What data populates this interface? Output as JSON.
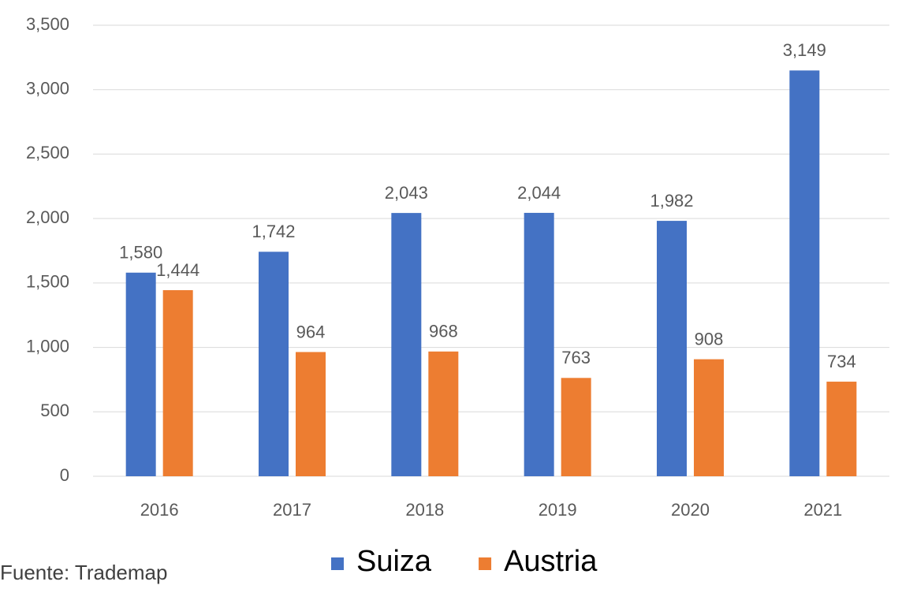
{
  "chart_data": {
    "type": "bar",
    "categories": [
      "2016",
      "2017",
      "2018",
      "2019",
      "2020",
      "2021"
    ],
    "series": [
      {
        "name": "Suiza",
        "color": "#4472c4",
        "values": [
          1580,
          1742,
          2043,
          2044,
          1982,
          3149
        ],
        "value_labels": [
          "1,580",
          "1,742",
          "2,043",
          "2,044",
          "1,982",
          "3,149"
        ]
      },
      {
        "name": "Austria",
        "color": "#ed7d31",
        "values": [
          1444,
          964,
          968,
          763,
          908,
          734
        ],
        "value_labels": [
          "1,444",
          "964",
          "968",
          "763",
          "908",
          "734"
        ]
      }
    ],
    "ylim": [
      0,
      3500
    ],
    "yticks": [
      0,
      500,
      {
        "value": 1000,
        "label": "1,000"
      },
      {
        "value": 1500,
        "label": "1,500"
      },
      {
        "value": 2000,
        "label": "2,000"
      },
      {
        "value": 2500,
        "label": "2,500"
      },
      {
        "value": 3000,
        "label": "3,000"
      },
      {
        "value": 3500,
        "label": "3,500"
      }
    ],
    "grid": true,
    "legend": "bottom",
    "source": "Fuente: Trademap"
  }
}
